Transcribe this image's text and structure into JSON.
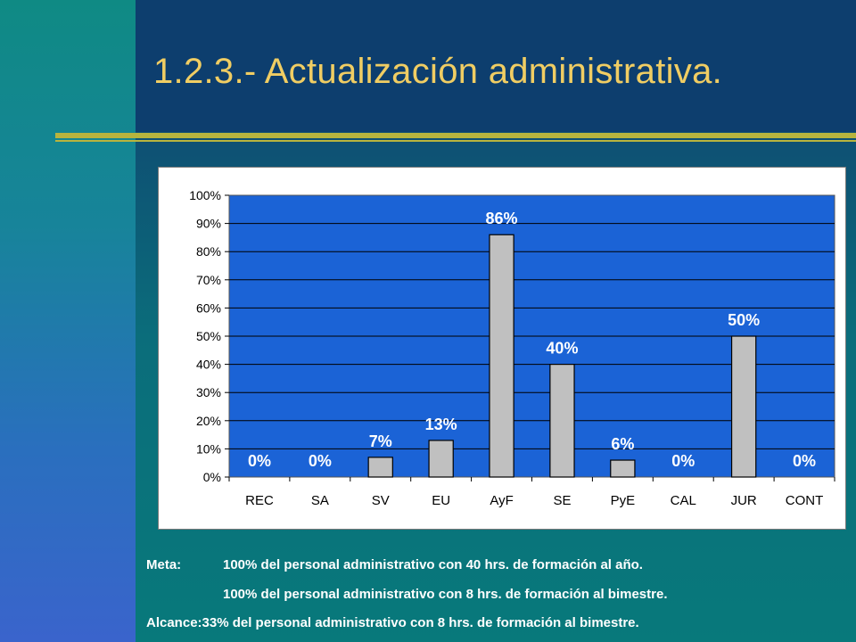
{
  "slide": {
    "title": "1.2.3.- Actualización administrativa.",
    "colors": {
      "title": "#f0cd63",
      "plot_area": "#1b63d6",
      "bar": "#c0c0c0",
      "data_label": "#ffffff",
      "rule": "#b8b43e"
    }
  },
  "chart_data": {
    "type": "bar",
    "categories": [
      "REC",
      "SA",
      "SV",
      "EU",
      "AyF",
      "SE",
      "PyE",
      "CAL",
      "JUR",
      "CONT"
    ],
    "values": [
      0,
      0,
      7,
      13,
      86,
      40,
      6,
      0,
      50,
      0
    ],
    "data_labels": [
      "0%",
      "0%",
      "7%",
      "13%",
      "86%",
      "40%",
      "6%",
      "0%",
      "50%",
      "0%"
    ],
    "ylim": [
      0,
      100
    ],
    "yticks": [
      "0%",
      "10%",
      "20%",
      "30%",
      "40%",
      "50%",
      "60%",
      "70%",
      "80%",
      "90%",
      "100%"
    ],
    "title": "",
    "xlabel": "",
    "ylabel": "",
    "grid": true,
    "legend": "none"
  },
  "footer": {
    "meta_label": "Meta:",
    "meta_line1": "100% del personal administrativo con 40 hrs. de formación al año.",
    "meta_line2": "100% del personal administrativo con 8 hrs. de formación al bimestre.",
    "alcance_label": "Alcance:",
    "alcance_text": "33% del personal administrativo con 8 hrs. de formación al bimestre."
  }
}
